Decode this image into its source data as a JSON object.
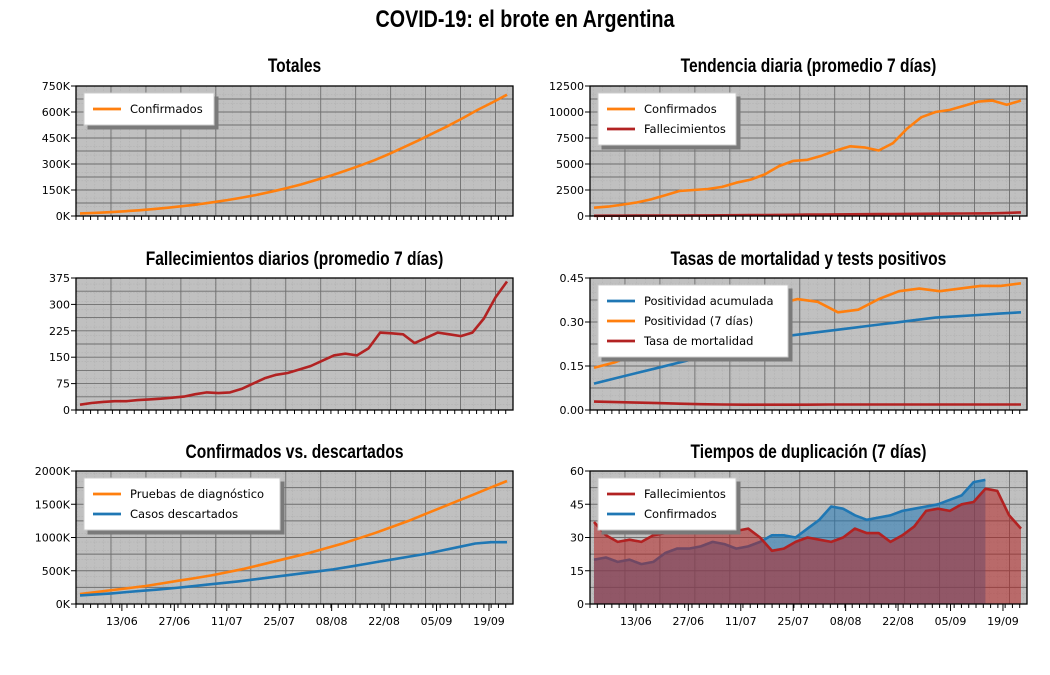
{
  "title": "COVID-19: el brote en Argentina",
  "date_ticks": [
    "13/06",
    "27/06",
    "11/07",
    "25/07",
    "08/08",
    "22/08",
    "05/09",
    "19/09"
  ],
  "colors": {
    "orange": "#ff7f0e",
    "red": "#b22222",
    "blue": "#1f77b4",
    "panel": "#c0c0c0"
  },
  "chart_data": [
    {
      "id": "totales",
      "type": "line",
      "title": "Totales",
      "grid": true,
      "legend": "top-left",
      "ylim": [
        0,
        750000
      ],
      "yticks": [
        "0K",
        "150K",
        "300K",
        "450K",
        "600K",
        "750K"
      ],
      "series": [
        {
          "name": "Confirmados",
          "color": "#ff7f0e",
          "values": [
            15000,
            18000,
            22000,
            27000,
            33000,
            40000,
            48000,
            57000,
            67000,
            79000,
            92000,
            106000,
            122000,
            140000,
            160000,
            182000,
            207000,
            232000,
            260000,
            290000,
            322000,
            358000,
            397000,
            437000,
            478000,
            520000,
            565000,
            612000,
            655000,
            700000
          ]
        }
      ]
    },
    {
      "id": "tendencia",
      "type": "line",
      "title": "Tendencia diaria (promedio 7 días)",
      "grid": true,
      "legend": "top-left",
      "ylim": [
        0,
        12500
      ],
      "yticks": [
        "0",
        "2500",
        "5000",
        "7500",
        "10000",
        "12500"
      ],
      "series": [
        {
          "name": "Confirmados",
          "color": "#ff7f0e",
          "values": [
            800,
            900,
            1100,
            1300,
            1600,
            2000,
            2400,
            2500,
            2600,
            2800,
            3200,
            3500,
            4000,
            4800,
            5300,
            5400,
            5800,
            6300,
            6700,
            6600,
            6300,
            7000,
            8400,
            9500,
            10000,
            10200,
            10600,
            11000,
            11100,
            10700,
            11100
          ]
        },
        {
          "name": "Fallecimientos",
          "color": "#b22222",
          "values": [
            20,
            25,
            30,
            35,
            40,
            45,
            50,
            55,
            60,
            70,
            80,
            90,
            100,
            110,
            120,
            130,
            140,
            150,
            160,
            170,
            180,
            190,
            200,
            210,
            220,
            230,
            240,
            250,
            260,
            300,
            350
          ]
        }
      ]
    },
    {
      "id": "fallecimientos",
      "type": "line",
      "title": "Fallecimientos diarios (promedio 7 días)",
      "grid": true,
      "ylim": [
        0,
        375
      ],
      "yticks": [
        "0",
        "75",
        "150",
        "225",
        "300",
        "375"
      ],
      "series": [
        {
          "color": "#b22222",
          "values": [
            15,
            20,
            23,
            25,
            25,
            28,
            30,
            32,
            35,
            38,
            45,
            50,
            48,
            50,
            60,
            75,
            90,
            100,
            105,
            115,
            125,
            140,
            155,
            160,
            155,
            175,
            220,
            218,
            215,
            190,
            205,
            220,
            215,
            210,
            220,
            260,
            320,
            365
          ]
        }
      ]
    },
    {
      "id": "tasas",
      "type": "line",
      "title": "Tasas de mortalidad y tests positivos",
      "grid": true,
      "legend": "top-left",
      "ylim": [
        0,
        0.5
      ],
      "yticks": [
        "0.00",
        "0.15",
        "0.30",
        "0.45"
      ],
      "series": [
        {
          "name": "Positividad acumulada",
          "color": "#1f77b4",
          "values": [
            0.1,
            0.12,
            0.14,
            0.16,
            0.18,
            0.2,
            0.22,
            0.24,
            0.26,
            0.28,
            0.29,
            0.3,
            0.31,
            0.32,
            0.33,
            0.34,
            0.35,
            0.355,
            0.36,
            0.365,
            0.37
          ]
        },
        {
          "name": "Positividad (7 días)",
          "color": "#ff7f0e",
          "values": [
            0.16,
            0.18,
            0.21,
            0.25,
            0.28,
            0.31,
            0.35,
            0.38,
            0.39,
            0.4,
            0.42,
            0.41,
            0.37,
            0.38,
            0.42,
            0.45,
            0.46,
            0.45,
            0.46,
            0.47,
            0.47,
            0.48
          ]
        },
        {
          "name": "Tasa de mortalidad",
          "color": "#b22222",
          "values": [
            0.032,
            0.03,
            0.028,
            0.026,
            0.024,
            0.022,
            0.021,
            0.02,
            0.02,
            0.02,
            0.02,
            0.021,
            0.021,
            0.021,
            0.021,
            0.021,
            0.021,
            0.021,
            0.021,
            0.021,
            0.021
          ]
        }
      ]
    },
    {
      "id": "descartados",
      "type": "line",
      "title": "Confirmados vs. descartados",
      "grid": true,
      "legend": "top-left",
      "ylim": [
        0,
        2000000
      ],
      "yticks": [
        "0K",
        "500K",
        "1000K",
        "1500K",
        "2000K"
      ],
      "series": [
        {
          "name": "Pruebas de diagnóstico",
          "color": "#ff7f0e",
          "values": [
            150000,
            180000,
            210000,
            240000,
            270000,
            310000,
            350000,
            390000,
            430000,
            480000,
            530000,
            590000,
            650000,
            710000,
            770000,
            840000,
            910000,
            990000,
            1070000,
            1160000,
            1250000,
            1350000,
            1450000,
            1550000,
            1650000,
            1750000,
            1850000
          ]
        },
        {
          "name": "Casos descartados",
          "color": "#1f77b4",
          "values": [
            130000,
            145000,
            160000,
            180000,
            200000,
            220000,
            240000,
            265000,
            290000,
            315000,
            340000,
            370000,
            400000,
            430000,
            460000,
            490000,
            520000,
            560000,
            600000,
            640000,
            680000,
            720000,
            760000,
            810000,
            860000,
            910000,
            930000,
            930000
          ]
        }
      ]
    },
    {
      "id": "duplicacion",
      "type": "area",
      "title": "Tiempos de duplicación (7 días)",
      "grid": true,
      "legend": "top-left",
      "ylim": [
        0,
        60
      ],
      "yticks": [
        "0",
        "15",
        "30",
        "45",
        "60"
      ],
      "series": [
        {
          "name": "Fallecimientos",
          "color": "#b22222",
          "values": [
            37,
            31,
            28,
            29,
            28,
            31,
            32,
            33,
            32,
            33,
            33,
            34,
            33,
            34,
            30,
            24,
            25,
            28,
            30,
            29,
            28,
            30,
            34,
            32,
            32,
            28,
            31,
            35,
            42,
            43,
            42,
            45,
            46,
            52,
            51,
            40,
            34
          ]
        },
        {
          "name": "Confirmados",
          "color": "#1f77b4",
          "values": [
            20,
            21,
            19,
            20,
            18,
            19,
            23,
            25,
            25,
            26,
            28,
            27,
            25,
            26,
            28,
            31,
            31,
            30,
            34,
            38,
            44,
            43,
            40,
            38,
            39,
            40,
            42,
            43,
            44,
            45,
            47,
            49,
            55,
            56
          ]
        }
      ]
    }
  ]
}
